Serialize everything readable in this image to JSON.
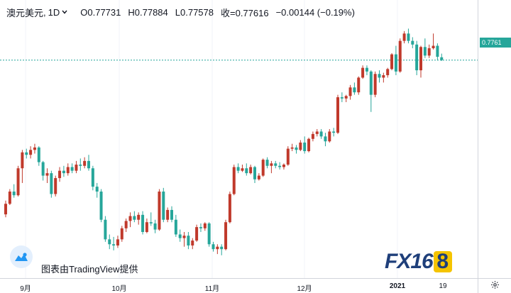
{
  "legend": {
    "symbol": "澳元美元",
    "separator": ",",
    "interval": "1D",
    "open": "O0.77731",
    "high": "H0.77884",
    "low": "L0.77578",
    "close": "收=0.77616",
    "change": "−0.00144 (−0.19%)"
  },
  "price_axis": {
    "last_price_label": "0.7761"
  },
  "time_axis": [
    {
      "label": "9月",
      "bold": false
    },
    {
      "label": "10月",
      "bold": false
    },
    {
      "label": "11月",
      "bold": false
    },
    {
      "label": "12月",
      "bold": false
    },
    {
      "label": "2021",
      "bold": true
    },
    {
      "label": "19",
      "bold": false
    }
  ],
  "attribution": {
    "text": "图表由TradingView提供"
  },
  "watermark": {
    "fx": "FX16",
    "eight": "8"
  },
  "colors": {
    "up": "#c0392b",
    "down": "#26a69a",
    "last_price": "#26a69a",
    "grid": "#f0f3fa"
  },
  "chart_data": {
    "type": "candlestick",
    "symbol": "澳元美元",
    "interval": "1D",
    "last_price": 0.77616,
    "candles": [
      [
        0.7132,
        0.7188,
        0.712,
        0.7175
      ],
      [
        0.7175,
        0.7235,
        0.717,
        0.7225
      ],
      [
        0.7225,
        0.7255,
        0.72,
        0.721
      ],
      [
        0.721,
        0.733,
        0.7205,
        0.732
      ],
      [
        0.732,
        0.7395,
        0.726,
        0.7385
      ],
      [
        0.7385,
        0.74,
        0.736,
        0.7375
      ],
      [
        0.7375,
        0.741,
        0.736,
        0.7395
      ],
      [
        0.7395,
        0.742,
        0.738,
        0.7405
      ],
      [
        0.7405,
        0.741,
        0.733,
        0.7345
      ],
      [
        0.7345,
        0.735,
        0.727,
        0.729
      ],
      [
        0.729,
        0.732,
        0.726,
        0.73
      ],
      [
        0.73,
        0.731,
        0.72,
        0.7215
      ],
      [
        0.7215,
        0.729,
        0.7205,
        0.728
      ],
      [
        0.728,
        0.7325,
        0.7265,
        0.731
      ],
      [
        0.731,
        0.733,
        0.7285,
        0.73
      ],
      [
        0.73,
        0.734,
        0.729,
        0.7325
      ],
      [
        0.7325,
        0.734,
        0.73,
        0.731
      ],
      [
        0.731,
        0.735,
        0.73,
        0.7335
      ],
      [
        0.7335,
        0.736,
        0.731,
        0.733
      ],
      [
        0.733,
        0.7365,
        0.732,
        0.735
      ],
      [
        0.735,
        0.7375,
        0.731,
        0.732
      ],
      [
        0.732,
        0.733,
        0.723,
        0.7245
      ],
      [
        0.7245,
        0.726,
        0.72,
        0.7225
      ],
      [
        0.7225,
        0.7235,
        0.71,
        0.711
      ],
      [
        0.711,
        0.7125,
        0.702,
        0.703
      ],
      [
        0.703,
        0.705,
        0.699,
        0.701
      ],
      [
        0.701,
        0.704,
        0.6985,
        0.7005
      ],
      [
        0.7005,
        0.7045,
        0.6995,
        0.703
      ],
      [
        0.703,
        0.7085,
        0.702,
        0.7075
      ],
      [
        0.7075,
        0.7115,
        0.706,
        0.7105
      ],
      [
        0.7105,
        0.714,
        0.708,
        0.7125
      ],
      [
        0.7125,
        0.7145,
        0.71,
        0.711
      ],
      [
        0.711,
        0.714,
        0.709,
        0.713
      ],
      [
        0.713,
        0.7145,
        0.705,
        0.706
      ],
      [
        0.706,
        0.7115,
        0.7055,
        0.71
      ],
      [
        0.71,
        0.714,
        0.7085,
        0.7095
      ],
      [
        0.7095,
        0.711,
        0.7055,
        0.707
      ],
      [
        0.707,
        0.7235,
        0.7065,
        0.7225
      ],
      [
        0.7225,
        0.724,
        0.71,
        0.711
      ],
      [
        0.711,
        0.716,
        0.71,
        0.715
      ],
      [
        0.715,
        0.7165,
        0.71,
        0.711
      ],
      [
        0.711,
        0.713,
        0.704,
        0.705
      ],
      [
        0.705,
        0.707,
        0.702,
        0.7035
      ],
      [
        0.7035,
        0.706,
        0.7,
        0.7045
      ],
      [
        0.7045,
        0.706,
        0.699,
        0.7005
      ],
      [
        0.7005,
        0.7035,
        0.699,
        0.7025
      ],
      [
        0.7025,
        0.709,
        0.702,
        0.708
      ],
      [
        0.708,
        0.7095,
        0.706,
        0.7075
      ],
      [
        0.7075,
        0.71,
        0.7065,
        0.7095
      ],
      [
        0.7095,
        0.71,
        0.7,
        0.701
      ],
      [
        0.701,
        0.702,
        0.698,
        0.699
      ],
      [
        0.699,
        0.701,
        0.697,
        0.7
      ],
      [
        0.7,
        0.701,
        0.6965,
        0.699
      ],
      [
        0.699,
        0.711,
        0.6985,
        0.71
      ],
      [
        0.71,
        0.7225,
        0.7095,
        0.7215
      ],
      [
        0.7215,
        0.7335,
        0.721,
        0.7325
      ],
      [
        0.7325,
        0.734,
        0.73,
        0.731
      ],
      [
        0.731,
        0.7335,
        0.7305,
        0.732
      ],
      [
        0.732,
        0.734,
        0.729,
        0.73
      ],
      [
        0.73,
        0.7335,
        0.7295,
        0.7325
      ],
      [
        0.7325,
        0.733,
        0.726,
        0.7275
      ],
      [
        0.7275,
        0.73,
        0.727,
        0.729
      ],
      [
        0.729,
        0.736,
        0.7285,
        0.7355
      ],
      [
        0.7355,
        0.7365,
        0.732,
        0.733
      ],
      [
        0.733,
        0.735,
        0.73,
        0.734
      ],
      [
        0.734,
        0.735,
        0.732,
        0.733
      ],
      [
        0.733,
        0.7345,
        0.7315,
        0.7325
      ],
      [
        0.7325,
        0.734,
        0.7315,
        0.7335
      ],
      [
        0.7335,
        0.741,
        0.733,
        0.74
      ],
      [
        0.74,
        0.742,
        0.739,
        0.7405
      ],
      [
        0.7405,
        0.7415,
        0.738,
        0.7395
      ],
      [
        0.7395,
        0.7435,
        0.739,
        0.7425
      ],
      [
        0.7425,
        0.745,
        0.738,
        0.739
      ],
      [
        0.739,
        0.7445,
        0.7385,
        0.744
      ],
      [
        0.744,
        0.747,
        0.743,
        0.746
      ],
      [
        0.746,
        0.748,
        0.745,
        0.747
      ],
      [
        0.747,
        0.748,
        0.744,
        0.745
      ],
      [
        0.745,
        0.7465,
        0.741,
        0.743
      ],
      [
        0.743,
        0.748,
        0.7425,
        0.747
      ],
      [
        0.747,
        0.7485,
        0.745,
        0.7465
      ],
      [
        0.7465,
        0.762,
        0.746,
        0.761
      ],
      [
        0.761,
        0.763,
        0.759,
        0.7605
      ],
      [
        0.7605,
        0.762,
        0.759,
        0.7615
      ],
      [
        0.7615,
        0.766,
        0.76,
        0.765
      ],
      [
        0.765,
        0.767,
        0.762,
        0.763
      ],
      [
        0.763,
        0.7695,
        0.762,
        0.769
      ],
      [
        0.769,
        0.774,
        0.7685,
        0.773
      ],
      [
        0.773,
        0.774,
        0.77,
        0.7715
      ],
      [
        0.7715,
        0.772,
        0.755,
        0.762
      ],
      [
        0.762,
        0.7715,
        0.761,
        0.7705
      ],
      [
        0.7705,
        0.772,
        0.767,
        0.769
      ],
      [
        0.769,
        0.771,
        0.767,
        0.77
      ],
      [
        0.77,
        0.773,
        0.769,
        0.7725
      ],
      [
        0.7725,
        0.779,
        0.772,
        0.7785
      ],
      [
        0.7785,
        0.782,
        0.77,
        0.7715
      ],
      [
        0.7715,
        0.785,
        0.771,
        0.784
      ],
      [
        0.784,
        0.788,
        0.783,
        0.787
      ],
      [
        0.787,
        0.789,
        0.783,
        0.784
      ],
      [
        0.784,
        0.7855,
        0.781,
        0.7825
      ],
      [
        0.7825,
        0.784,
        0.77,
        0.772
      ],
      [
        0.772,
        0.782,
        0.769,
        0.7815
      ],
      [
        0.7815,
        0.785,
        0.777,
        0.778
      ],
      [
        0.778,
        0.7825,
        0.777,
        0.781
      ],
      [
        0.781,
        0.787,
        0.7805,
        0.782
      ],
      [
        0.782,
        0.783,
        0.776,
        0.7775
      ],
      [
        0.7773,
        0.7788,
        0.7758,
        0.7762
      ]
    ],
    "candle_fields": [
      "open",
      "high",
      "low",
      "close"
    ],
    "x_tick_labels": [
      "9月",
      "10月",
      "11月",
      "12月",
      "2021",
      "19"
    ],
    "y_range": [
      0.695,
      0.792
    ],
    "grid": true
  }
}
